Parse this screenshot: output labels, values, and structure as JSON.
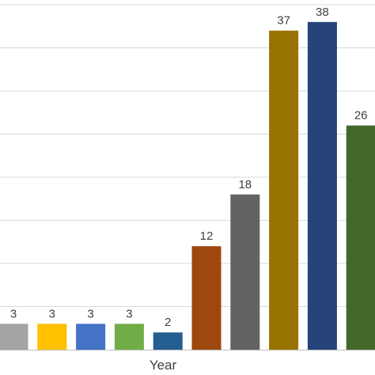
{
  "chart_data": {
    "type": "bar",
    "title": "",
    "xlabel": "Year",
    "ylabel": "",
    "ylim": [
      0,
      40
    ],
    "grid": true,
    "categories": [
      "",
      "",
      "",
      "",
      "",
      "",
      "",
      "",
      "",
      ""
    ],
    "values": [
      3,
      3,
      3,
      3,
      2,
      12,
      18,
      37,
      38,
      26
    ],
    "data_labels": [
      "3",
      "3",
      "3",
      "3",
      "2",
      "12",
      "18",
      "37",
      "38",
      "26"
    ],
    "colors": [
      "#a5a5a5",
      "#ffc000",
      "#4472c4",
      "#70ad47",
      "#255e91",
      "#9e480e",
      "#636363",
      "#997300",
      "#264478",
      "#43682b"
    ]
  }
}
